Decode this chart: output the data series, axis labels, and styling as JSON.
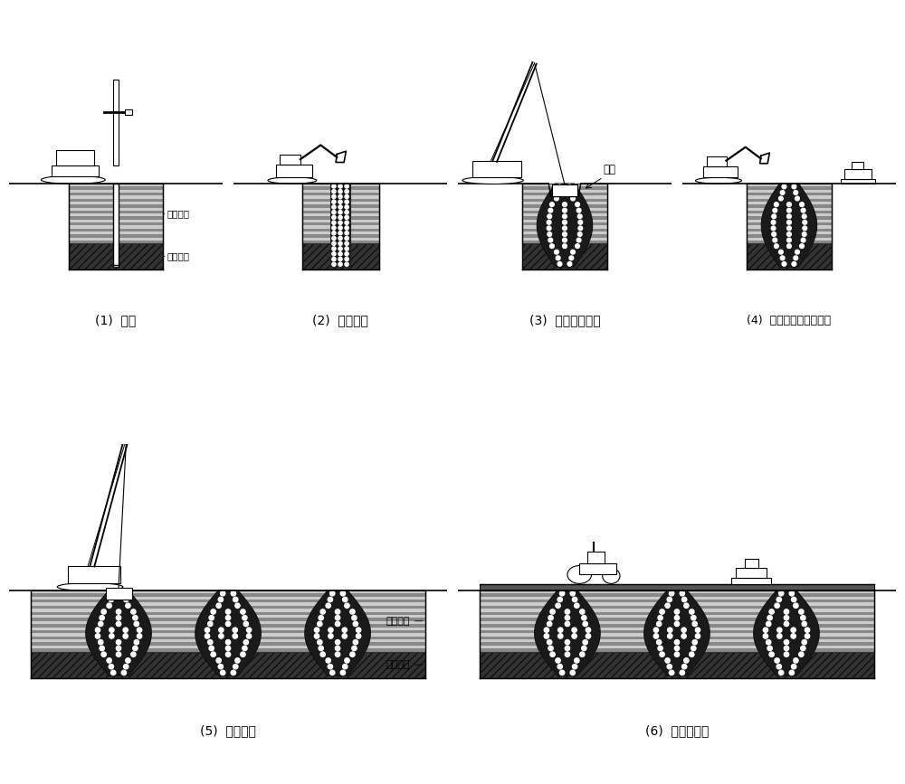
{
  "bg_color": "#ffffff",
  "labels": [
    "(1)  成孔",
    "(2)  孔内填料",
    "(3)  平锤点夯施工",
    "(4)  夯坑填料、平整场地",
    "(5)  满夯施工",
    "(6)  铺设褥垫层"
  ],
  "layer_label_soft": "软弱土层",
  "layer_label_hard": "下卧硬层",
  "pit_label": "夯坑",
  "font_size": 10,
  "soft_layer_light": "#c8c8c8",
  "soft_layer_dark": "#686868",
  "hard_layer_color": "#2a2a2a",
  "col_fill_color": "#1a1a1a",
  "ground_color": "#ffffff"
}
